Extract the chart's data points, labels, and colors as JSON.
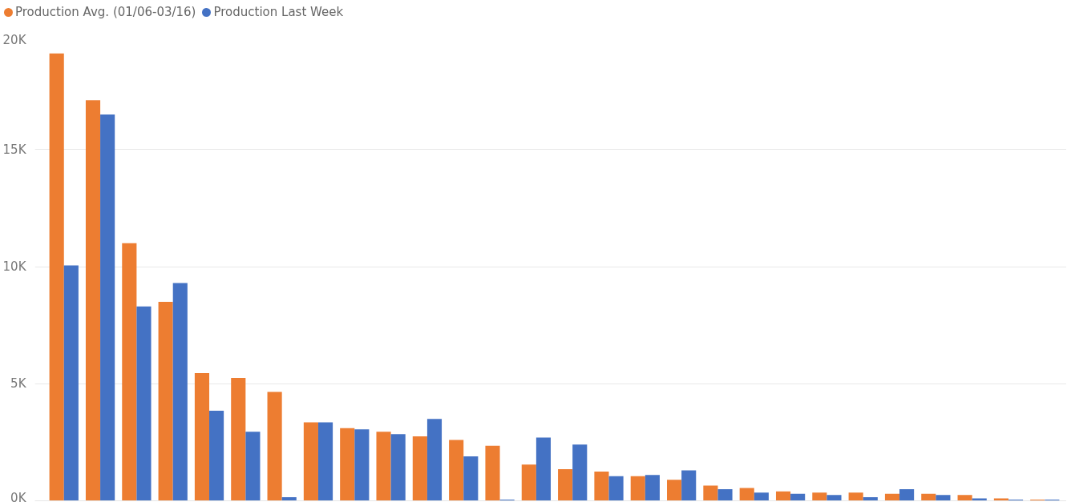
{
  "chart_data": {
    "type": "bar",
    "categories": [
      null,
      null,
      null,
      null,
      null,
      null,
      null,
      null,
      null,
      null,
      null,
      null,
      null,
      null,
      null,
      null,
      null,
      null,
      null,
      null,
      null,
      null,
      null,
      null,
      null,
      null,
      null,
      null
    ],
    "series": [
      {
        "name": "Production Avg. (01/06-03/16)",
        "color": "#ed7d31",
        "values": [
          19100,
          17100,
          11000,
          8500,
          5450,
          5250,
          4650,
          3350,
          3100,
          2950,
          2750,
          2600,
          2350,
          1550,
          1350,
          1250,
          1050,
          900,
          650,
          550,
          400,
          350,
          350,
          300,
          300,
          250,
          100,
          50
        ]
      },
      {
        "name": "Production Last Week",
        "color": "#4472c4",
        "values": [
          10050,
          16500,
          8300,
          9300,
          3850,
          2950,
          150,
          3350,
          3050,
          2850,
          3500,
          1900,
          50,
          2700,
          2400,
          1050,
          1100,
          1300,
          500,
          350,
          300,
          250,
          150,
          500,
          250,
          100,
          50,
          50
        ]
      }
    ],
    "ylim": [
      0,
      20000
    ],
    "yticks": [
      {
        "value": 0,
        "label": "0K"
      },
      {
        "value": 5000,
        "label": "5K"
      },
      {
        "value": 10000,
        "label": "10K"
      },
      {
        "value": 15000,
        "label": "15K"
      },
      {
        "value": 20000,
        "label": "20K"
      }
    ],
    "grid": "y",
    "legend": "top left",
    "tick_labels": "y"
  }
}
